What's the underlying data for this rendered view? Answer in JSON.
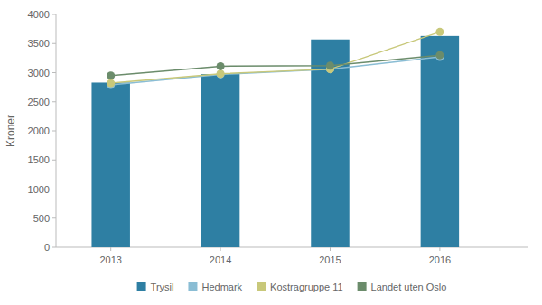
{
  "chart_data": {
    "type": "bar",
    "x": [
      2013,
      2014,
      2015,
      2016
    ],
    "xlim": [
      2012.5,
      2016.8
    ],
    "xticks": [
      2013,
      2014,
      2015,
      2016
    ],
    "ylabel": "Kroner",
    "ylim": [
      0,
      4000
    ],
    "yticks": [
      0,
      500,
      1000,
      1500,
      2000,
      2500,
      3000,
      3500,
      4000
    ],
    "grid": false,
    "legend": "bottom",
    "series": [
      {
        "name": "Trysil",
        "type": "bar",
        "color": "#2e7fa3",
        "values": [
          2830,
          2975,
          3570,
          3630
        ]
      },
      {
        "name": "Hedmark",
        "type": "line",
        "marker": "circle",
        "color": "#8abdd4",
        "values": [
          2790,
          2970,
          3060,
          3270
        ]
      },
      {
        "name": "Kostragruppe 11",
        "type": "line",
        "marker": "circle",
        "color": "#c8c87a",
        "values": [
          2820,
          2980,
          3060,
          3700
        ]
      },
      {
        "name": "Landet uten Oslo",
        "type": "line",
        "marker": "circle",
        "color": "#6b8c6b",
        "values": [
          2950,
          3110,
          3120,
          3300
        ]
      }
    ]
  }
}
